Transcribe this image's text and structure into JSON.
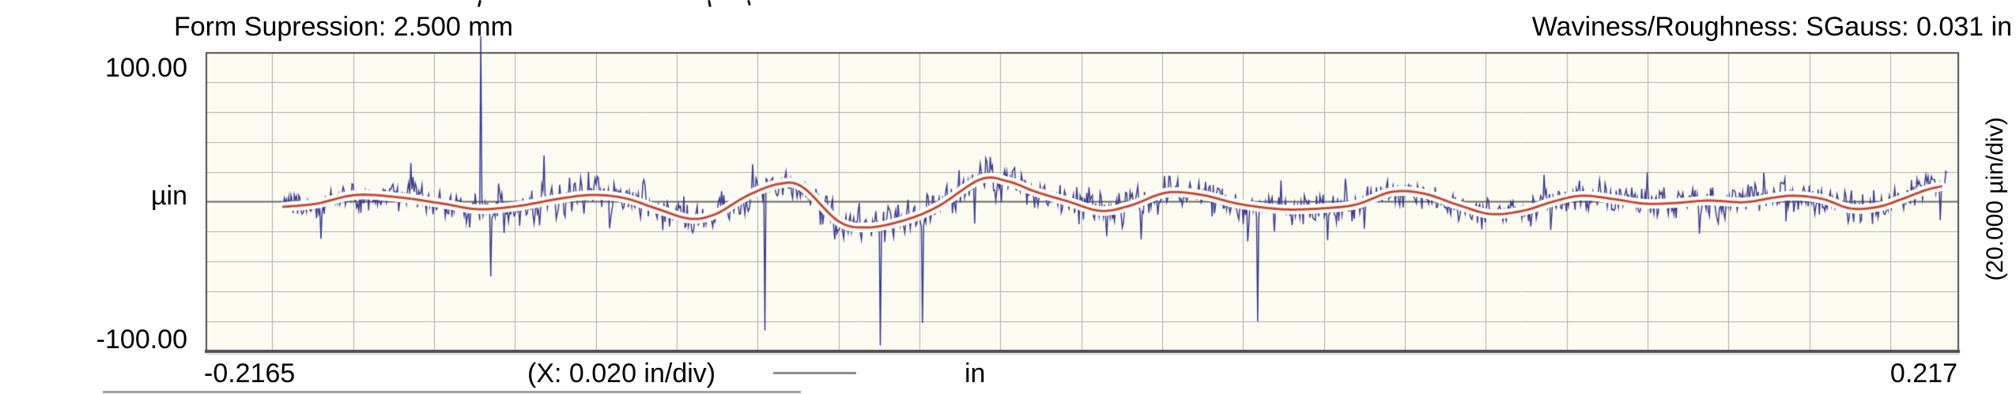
{
  "header": {
    "left": "Form Supression: 2.500 mm",
    "right": "Waviness/Roughness: SGauss: 0.031 in"
  },
  "y_axis": {
    "max_label": "100.00",
    "unit_label": "µin",
    "min_label": "-100.00",
    "div_label": "(20.000 µin/div)"
  },
  "x_axis": {
    "min_label": "-0.2165",
    "div_label": "(X: 0.020 in/div)",
    "unit_label": "in",
    "max_label": "0.217"
  },
  "chart_data": {
    "type": "line",
    "title": "Form Supression: 2.500 mm",
    "subtitle": "Waviness/Roughness: SGauss: 0.031 in",
    "xlabel": "in",
    "ylabel": "µin",
    "x_range": [
      -0.2165,
      0.217
    ],
    "y_range": [
      -100,
      100
    ],
    "x_div_in": 0.02,
    "y_div_uin": 20.0,
    "grid": {
      "on": true,
      "line_color": "#aeaeae",
      "zero_line_color": "#6a6a6a",
      "border_color": "#4f4f4f",
      "plot_bg": "#fcfbf1",
      "under_shadow": "#cfcfcf"
    },
    "legend_position": "bottom",
    "series": [
      {
        "name": "roughness",
        "kind": "noise-trace",
        "color": "#3d3d8f",
        "line_width": 1.5,
        "x_start": -0.1973,
        "x_end": 0.214,
        "n_points": 1500,
        "seed": 987654321,
        "noise_std_uin": [
          [
            -0.1973,
            10
          ],
          [
            -0.13,
            11.5
          ],
          [
            -0.06,
            13.5
          ],
          [
            0.0,
            12.5
          ],
          [
            0.08,
            11
          ],
          [
            0.16,
            11
          ],
          [
            0.214,
            12.5
          ]
        ],
        "tail_prob": 0.055,
        "clamp_uin": [
          -97,
          102
        ],
        "extreme_spikes": [
          [
            -0.1485,
            110.8
          ],
          [
            -0.0783,
            -86
          ],
          [
            -0.0497,
            -96
          ],
          [
            -0.0392,
            -81
          ],
          [
            0.0435,
            -80
          ]
        ]
      },
      {
        "name": "waviness",
        "kind": "smooth-line",
        "color": "#c8492a",
        "casing_color": "#ffffff",
        "line_width": 3,
        "casing_width": 12,
        "points": [
          [
            -0.1973,
            -3.4
          ],
          [
            -0.1891,
            -1.3
          ],
          [
            -0.1794,
            4.5
          ],
          [
            -0.1686,
            2.9
          ],
          [
            -0.1578,
            -1.3
          ],
          [
            -0.149,
            -5.0
          ],
          [
            -0.1393,
            -2.9
          ],
          [
            -0.1295,
            1.8
          ],
          [
            -0.1211,
            4.5
          ],
          [
            -0.1129,
            2.4
          ],
          [
            -0.1051,
            -4.5
          ],
          [
            -0.0968,
            -11.3
          ],
          [
            -0.0904,
            -8.2
          ],
          [
            -0.0826,
            4.0
          ],
          [
            -0.0748,
            11.9
          ],
          [
            -0.0689,
            9.8
          ],
          [
            -0.0601,
            -12.9
          ],
          [
            -0.0532,
            -17.2
          ],
          [
            -0.0444,
            -12.9
          ],
          [
            -0.0356,
            -3.4
          ],
          [
            -0.0249,
            15.0
          ],
          [
            -0.018,
            13.5
          ],
          [
            -0.0112,
            6.6
          ],
          [
            -0.0034,
            0.3
          ],
          [
            0.0048,
            -6.1
          ],
          [
            0.0123,
            -2.4
          ],
          [
            0.0211,
            6.1
          ],
          [
            0.0299,
            4.5
          ],
          [
            0.0387,
            -1.3
          ],
          [
            0.0494,
            -5.0
          ],
          [
            0.0592,
            -4.5
          ],
          [
            0.068,
            -1.8
          ],
          [
            0.0768,
            6.6
          ],
          [
            0.0846,
            5.5
          ],
          [
            0.0934,
            -2.4
          ],
          [
            0.1012,
            -8.2
          ],
          [
            0.1091,
            -6.1
          ],
          [
            0.1169,
            0.3
          ],
          [
            0.1237,
            4.0
          ],
          [
            0.1315,
            1.8
          ],
          [
            0.1394,
            -1.3
          ],
          [
            0.1472,
            -0.8
          ],
          [
            0.155,
            0.8
          ],
          [
            0.1638,
            -0.3
          ],
          [
            0.1716,
            2.9
          ],
          [
            0.1765,
            4.0
          ],
          [
            0.1833,
            1.8
          ],
          [
            0.1902,
            -4.5
          ],
          [
            0.197,
            -3.4
          ],
          [
            0.2029,
            1.8
          ],
          [
            0.2087,
            7.7
          ],
          [
            0.2126,
            10.3
          ]
        ]
      }
    ]
  }
}
